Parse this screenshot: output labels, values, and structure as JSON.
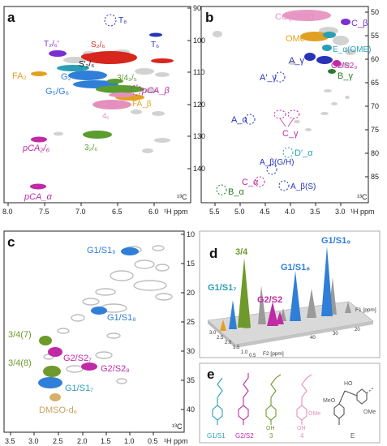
{
  "panels": {
    "a": {
      "letter": "a",
      "x_ticks": [
        "8.0",
        "7.5",
        "7.0",
        "6.5",
        "6.0"
      ],
      "y_ticks": [
        "90",
        "100",
        "110",
        "120",
        "130",
        "140"
      ],
      "x_unit": "¹H ppm",
      "y_unit": "¹³C",
      "labels": {
        "T8": "T₈",
        "T26": "T₂/₆′",
        "T6": "T₆",
        "S26": "S₂/₆",
        "S26p": "S′₂/₆",
        "FA2": "FA₂",
        "G2": "G₂",
        "G5G6": "G₅/G₆",
        "H345": "3/4₃/₅",
        "pCAb": "pCA_β",
        "FAb": "FA_β",
        "p4_6": "4₆",
        "pCA26": "pCA₂/₆",
        "p3_26": "3₂/₆",
        "pCAa": "pCA_α"
      }
    },
    "b": {
      "letter": "b",
      "x_ticks": [
        "5.5",
        "5.0",
        "4.5",
        "4.0",
        "3.5",
        "3.0"
      ],
      "y_ticks": [
        "50",
        "55",
        "60",
        "65",
        "70",
        "75",
        "80",
        "85"
      ],
      "x_unit": "¹H ppm",
      "y_unit": "¹³C",
      "labels": {
        "COOMe": "CO(OMe)",
        "Cb": "C_β",
        "OMe": "OMe",
        "EaOME": "E_α(OME)",
        "Ag": "A_γ",
        "G2S29": "G2/S2₉",
        "Bg": "B_γ",
        "Apg": "A′_γ",
        "Aa": "A_α",
        "Cg": "C_γ",
        "Dpa": "D′_α",
        "AbGH": "A_β(G/H)",
        "Ca": "C_α",
        "AbS": "A_β(S)",
        "Ba": "B_α"
      }
    },
    "c": {
      "letter": "c",
      "x_ticks": [
        "3.5",
        "3.0",
        "2.5",
        "2.0",
        "1.5",
        "1.0",
        "0.5"
      ],
      "y_ticks": [
        "10",
        "15",
        "20",
        "25",
        "30",
        "35",
        "40"
      ],
      "x_unit": "¹H ppm",
      "y_unit": "¹³C",
      "labels": {
        "G1S19": "G1/S1₉",
        "G1S18": "G1/S1₈",
        "p347": "3/4(7)",
        "G2S27": "G2/S2₇",
        "p348": "3/4(8)",
        "G2S28": "G2/S2₈",
        "G1S17": "G1/S1₇",
        "DMSO": "DMSO-d₆"
      }
    },
    "d": {
      "letter": "d",
      "x_axis": "F2 [ppm]",
      "y_axis": "F1 [ppm]",
      "x_ticks": [
        "3.0",
        "2.5",
        "2.0",
        "1.5",
        "1.0",
        "0.5"
      ],
      "y_ticks": [
        "40",
        "30",
        "20"
      ],
      "labels": {
        "p34": "3/4",
        "G1S19": "G1/S1₉",
        "G1S18": "G1/S1₈",
        "G1S17": "G1/S1₇",
        "G2S2": "G2/S2"
      }
    },
    "e": {
      "letter": "e",
      "labels": {
        "G1S1": "G1/S1",
        "G2S2": "G2/S2",
        "s3": "3",
        "s4": "4",
        "sE": "E",
        "OH": "OH",
        "OMe": "OMe",
        "HO": "HO",
        "MeO": "MeO"
      }
    }
  },
  "colors": {
    "red": "#d7261e",
    "blue": "#2f7fd8",
    "green": "#5a9c2e",
    "pink": "#e58fbf",
    "purple": "#c02aa6",
    "orange": "#e2a023",
    "cyan": "#2a9fb4",
    "darkblue": "#2733b8",
    "violet": "#7b2fd1",
    "gray": "#bdbdbd",
    "olive": "#6d9a2a",
    "tan": "#d6b06a"
  }
}
